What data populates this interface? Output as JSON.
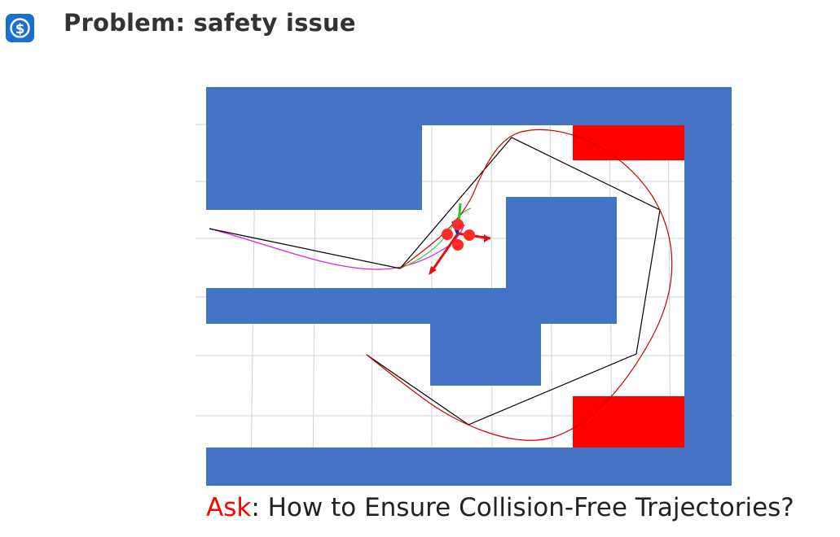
{
  "header": {
    "logo_icon": "dollar-s-logo-icon",
    "title": "Problem: safety issue"
  },
  "figure": {
    "colors": {
      "wall": "#4472c4",
      "hazard": "#ff0000",
      "trajectory": "#cc0000",
      "planned_path": "#000000",
      "magenta_trajectory": "#dd22dd",
      "grid": "#d0d0d0",
      "robot": "#ff2a2a"
    }
  },
  "caption": {
    "ask_label": "Ask",
    "question": ": How to Ensure Collision-Free Trajectories?"
  }
}
